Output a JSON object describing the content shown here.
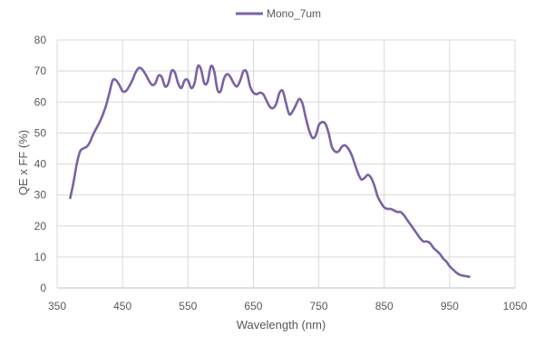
{
  "chart_data": {
    "type": "line",
    "title": "",
    "xlabel": "Wavelength (nm)",
    "ylabel": "QE x FF (%)",
    "xlim": [
      350,
      1050
    ],
    "ylim": [
      0,
      80
    ],
    "x_ticks": [
      350,
      450,
      550,
      650,
      750,
      850,
      950,
      1050
    ],
    "y_ticks": [
      0,
      10,
      20,
      30,
      40,
      50,
      60,
      70,
      80
    ],
    "x_tick_labels": [
      "350",
      "450",
      "550",
      "650",
      "750",
      "850",
      "950",
      "1050"
    ],
    "y_tick_labels": [
      "0",
      "10",
      "20",
      "30",
      "40",
      "50",
      "60",
      "70",
      "80"
    ],
    "grid": true,
    "legend_position": "top",
    "series": [
      {
        "name": "Mono_7um",
        "color": "#7B62A3",
        "points": [
          [
            370,
            29
          ],
          [
            375,
            34
          ],
          [
            380,
            40
          ],
          [
            385,
            44
          ],
          [
            390,
            45
          ],
          [
            395,
            45.5
          ],
          [
            400,
            47
          ],
          [
            405,
            49.5
          ],
          [
            410,
            51.5
          ],
          [
            415,
            53.5
          ],
          [
            420,
            56
          ],
          [
            425,
            59
          ],
          [
            430,
            63
          ],
          [
            435,
            67
          ],
          [
            440,
            67
          ],
          [
            445,
            65.5
          ],
          [
            450,
            63.5
          ],
          [
            455,
            63.5
          ],
          [
            460,
            65
          ],
          [
            465,
            67
          ],
          [
            470,
            69.5
          ],
          [
            475,
            71
          ],
          [
            480,
            70.5
          ],
          [
            485,
            69
          ],
          [
            490,
            67
          ],
          [
            495,
            65.5
          ],
          [
            500,
            66
          ],
          [
            505,
            68.5
          ],
          [
            510,
            68
          ],
          [
            515,
            65
          ],
          [
            520,
            66
          ],
          [
            525,
            70
          ],
          [
            530,
            69.5
          ],
          [
            535,
            66
          ],
          [
            540,
            64.5
          ],
          [
            545,
            67
          ],
          [
            550,
            67
          ],
          [
            555,
            64.5
          ],
          [
            560,
            66
          ],
          [
            565,
            71.5
          ],
          [
            570,
            70.5
          ],
          [
            575,
            66
          ],
          [
            580,
            66.5
          ],
          [
            585,
            71.5
          ],
          [
            590,
            70
          ],
          [
            595,
            64
          ],
          [
            600,
            63.5
          ],
          [
            605,
            67.5
          ],
          [
            610,
            69
          ],
          [
            615,
            68
          ],
          [
            620,
            66
          ],
          [
            625,
            65
          ],
          [
            630,
            67
          ],
          [
            635,
            70
          ],
          [
            640,
            69.5
          ],
          [
            645,
            65
          ],
          [
            650,
            63
          ],
          [
            655,
            62.5
          ],
          [
            660,
            63
          ],
          [
            665,
            62.5
          ],
          [
            670,
            60.5
          ],
          [
            675,
            58.5
          ],
          [
            680,
            58
          ],
          [
            685,
            59.5
          ],
          [
            690,
            63
          ],
          [
            695,
            63.5
          ],
          [
            700,
            59.5
          ],
          [
            705,
            56
          ],
          [
            710,
            57
          ],
          [
            715,
            59
          ],
          [
            720,
            61
          ],
          [
            725,
            59.5
          ],
          [
            730,
            55
          ],
          [
            735,
            51
          ],
          [
            740,
            48.5
          ],
          [
            745,
            49
          ],
          [
            750,
            52.5
          ],
          [
            755,
            53.5
          ],
          [
            760,
            53
          ],
          [
            765,
            50
          ],
          [
            770,
            45.5
          ],
          [
            775,
            44
          ],
          [
            780,
            44
          ],
          [
            785,
            45.5
          ],
          [
            790,
            46
          ],
          [
            795,
            45
          ],
          [
            800,
            43
          ],
          [
            805,
            40
          ],
          [
            810,
            37
          ],
          [
            815,
            35
          ],
          [
            820,
            35.5
          ],
          [
            825,
            36.5
          ],
          [
            830,
            35.5
          ],
          [
            835,
            33
          ],
          [
            840,
            29.5
          ],
          [
            845,
            27.5
          ],
          [
            850,
            26
          ],
          [
            855,
            25.5
          ],
          [
            860,
            25.5
          ],
          [
            865,
            25
          ],
          [
            870,
            24.5
          ],
          [
            875,
            24.5
          ],
          [
            880,
            23.5
          ],
          [
            885,
            22
          ],
          [
            890,
            20.5
          ],
          [
            895,
            19
          ],
          [
            900,
            17.5
          ],
          [
            905,
            16
          ],
          [
            910,
            15
          ],
          [
            915,
            15
          ],
          [
            920,
            14.5
          ],
          [
            925,
            13
          ],
          [
            930,
            12
          ],
          [
            935,
            11
          ],
          [
            940,
            9.5
          ],
          [
            945,
            8.5
          ],
          [
            950,
            7
          ],
          [
            955,
            6
          ],
          [
            960,
            5
          ],
          [
            965,
            4.3
          ],
          [
            970,
            4
          ],
          [
            975,
            3.8
          ],
          [
            980,
            3.6
          ]
        ]
      }
    ]
  }
}
